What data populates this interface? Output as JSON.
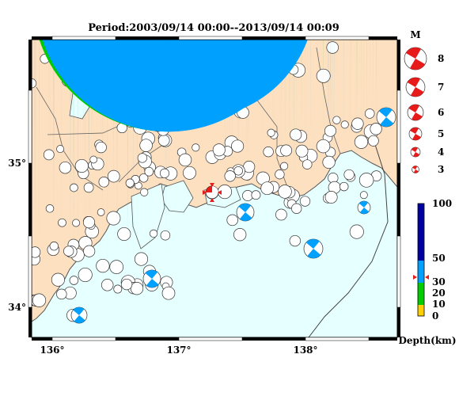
{
  "map": {
    "title": "Period:2003/09/14 00:00--2013/09/14 00:09",
    "lon_ticks": [
      "136°",
      "137°",
      "138°"
    ],
    "lat_ticks": [
      "35°",
      "34°"
    ],
    "colors": {
      "sea": "#e6ffff",
      "land": "#fde0c0",
      "coast": "#555555",
      "mainshock": "#e81b1b"
    }
  },
  "magnitude_legend": {
    "header": "M",
    "items": [
      "8",
      "7",
      "6",
      "5",
      "4",
      "3"
    ]
  },
  "depth_legend": {
    "labels": [
      "100",
      "50",
      "30",
      "20",
      "10",
      "0"
    ],
    "unit": "Depth(km)",
    "colors": [
      "#0000a0",
      "#00a0ff",
      "#00cc00",
      "#ffd000"
    ]
  }
}
